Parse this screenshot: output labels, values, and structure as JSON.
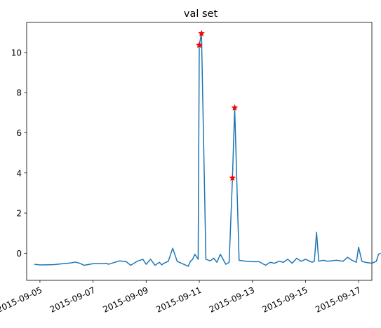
{
  "chart_data": {
    "type": "line",
    "title": "val set",
    "xlabel": "",
    "ylabel": "",
    "x_range": [
      "2015-09-04T12:00",
      "2015-09-17T12:00"
    ],
    "ylim": [
      -1.35,
      11.5
    ],
    "grid": false,
    "line_color": "#1f77b4",
    "marker_color": "#ff0000",
    "x_ticks": [
      {
        "date": "2015-09-05",
        "label": "2015-09-05"
      },
      {
        "date": "2015-09-07",
        "label": "2015-09-07"
      },
      {
        "date": "2015-09-09",
        "label": "2015-09-09"
      },
      {
        "date": "2015-09-11",
        "label": "2015-09-11"
      },
      {
        "date": "2015-09-13",
        "label": "2015-09-13"
      },
      {
        "date": "2015-09-15",
        "label": "2015-09-15"
      },
      {
        "date": "2015-09-17",
        "label": "2015-09-17"
      }
    ],
    "y_ticks": [
      {
        "value": 0,
        "label": "0"
      },
      {
        "value": 2,
        "label": "2"
      },
      {
        "value": 4,
        "label": "4"
      },
      {
        "value": 6,
        "label": "6"
      },
      {
        "value": 8,
        "label": "8"
      },
      {
        "value": 10,
        "label": "10"
      }
    ],
    "series": [
      {
        "x": [
          "2015-09-04T19:00",
          "2015-09-05T00:00",
          "2015-09-05T12:00",
          "2015-09-06T04:00",
          "2015-09-06T08:00",
          "2015-09-06T12:00",
          "2015-09-06T16:00",
          "2015-09-07T00:00",
          "2015-09-07T10:00",
          "2015-09-07T12:00",
          "2015-09-07T14:00",
          "2015-09-08T00:00",
          "2015-09-08T06:00",
          "2015-09-08T10:00",
          "2015-09-08T16:00",
          "2015-09-08T21:00",
          "2015-09-09T00:00",
          "2015-09-09T04:00",
          "2015-09-09T08:00",
          "2015-09-09T12:00",
          "2015-09-09T14:00",
          "2015-09-09T16:00",
          "2015-09-09T20:00",
          "2015-09-10T00:00",
          "2015-09-10T04:00",
          "2015-09-10T08:00",
          "2015-09-10T14:00",
          "2015-09-10T16:00",
          "2015-09-10T18:00",
          "2015-09-10T20:00",
          "2015-09-10T23:00",
          "2015-09-11T00:00",
          "2015-09-11T02:00",
          "2015-09-11T06:00",
          "2015-09-11T10:00",
          "2015-09-11T13:00",
          "2015-09-11T16:00",
          "2015-09-11T19:00",
          "2015-09-12T00:00",
          "2015-09-12T03:00",
          "2015-09-12T06:00",
          "2015-09-12T08:00",
          "2015-09-12T12:00",
          "2015-09-12T18:00",
          "2015-09-13T00:00",
          "2015-09-13T06:00",
          "2015-09-13T12:00",
          "2015-09-13T16:00",
          "2015-09-13T20:00",
          "2015-09-14T00:00",
          "2015-09-14T04:00",
          "2015-09-14T08:00",
          "2015-09-14T12:00",
          "2015-09-14T16:00",
          "2015-09-14T20:00",
          "2015-09-15T00:00",
          "2015-09-15T06:00",
          "2015-09-15T08:00",
          "2015-09-15T10:00",
          "2015-09-15T12:00",
          "2015-09-15T16:00",
          "2015-09-15T20:00",
          "2015-09-16T04:00",
          "2015-09-16T10:00",
          "2015-09-16T14:00",
          "2015-09-16T18:00",
          "2015-09-16T22:00",
          "2015-09-17T00:00",
          "2015-09-17T03:00",
          "2015-09-17T06:00",
          "2015-09-17T12:00",
          "2015-09-17T16:00",
          "2015-09-17T18:00",
          "2015-09-17T20:00"
        ],
        "y": [
          -0.55,
          -0.58,
          -0.57,
          -0.48,
          -0.44,
          -0.5,
          -0.6,
          -0.52,
          -0.52,
          -0.5,
          -0.55,
          -0.38,
          -0.42,
          -0.6,
          -0.4,
          -0.3,
          -0.55,
          -0.3,
          -0.6,
          -0.45,
          -0.58,
          -0.5,
          -0.4,
          0.25,
          -0.4,
          -0.5,
          -0.65,
          -0.4,
          -0.3,
          -0.05,
          -0.3,
          10.37,
          10.95,
          -0.3,
          -0.38,
          -0.25,
          -0.45,
          -0.05,
          -0.55,
          -0.45,
          3.75,
          7.25,
          -0.35,
          -0.4,
          -0.42,
          -0.42,
          -0.6,
          -0.45,
          -0.5,
          -0.4,
          -0.45,
          -0.3,
          -0.5,
          -0.25,
          -0.4,
          -0.3,
          -0.45,
          -0.4,
          1.05,
          -0.4,
          -0.35,
          -0.4,
          -0.35,
          -0.4,
          -0.2,
          -0.35,
          -0.45,
          0.3,
          -0.4,
          -0.45,
          -0.5,
          -0.4,
          -0.05,
          0.0
        ]
      }
    ],
    "markers": {
      "x": [
        "2015-09-11T00:00",
        "2015-09-11T02:00",
        "2015-09-12T06:00",
        "2015-09-12T08:00"
      ],
      "y": [
        10.37,
        10.95,
        3.75,
        7.25
      ]
    }
  }
}
